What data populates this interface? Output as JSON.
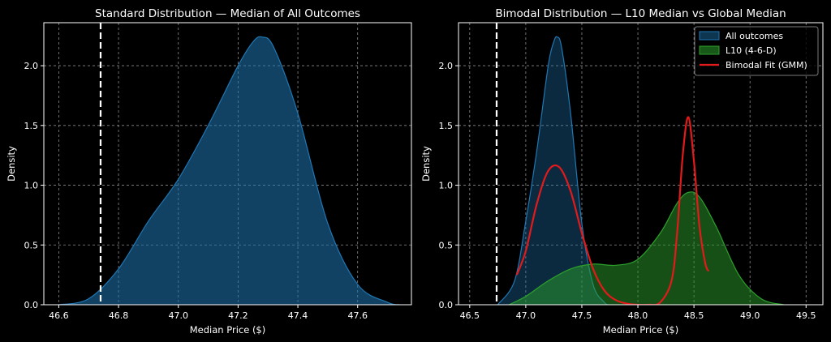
{
  "chart_data": [
    {
      "type": "area",
      "title": "Standard Distribution — Median of All Outcomes",
      "xlabel": "Median Price ($)",
      "ylabel": "Density",
      "xlim": [
        46.55,
        47.78
      ],
      "ylim": [
        0,
        2.36
      ],
      "xticks": [
        46.6,
        46.8,
        47.0,
        47.2,
        47.4,
        47.6
      ],
      "xtick_labels": [
        "46.6",
        "46.8",
        "47.0",
        "47.2",
        "47.4",
        "47.6"
      ],
      "yticks": [
        0.0,
        0.5,
        1.0,
        1.5,
        2.0
      ],
      "ytick_labels": [
        "0.0",
        "0.5",
        "1.0",
        "1.5",
        "2.0"
      ],
      "grid": true,
      "vline": {
        "x": 46.74,
        "style": "dashed",
        "color": "#ffffff"
      },
      "series": [
        {
          "name": "All outcomes",
          "color": "#1f77b4",
          "x": [
            46.6,
            46.7,
            46.8,
            46.9,
            47.0,
            47.1,
            47.2,
            47.25,
            47.28,
            47.32,
            47.4,
            47.5,
            47.6,
            47.7,
            47.74
          ],
          "y": [
            0.0,
            0.05,
            0.3,
            0.7,
            1.05,
            1.5,
            2.0,
            2.2,
            2.24,
            2.15,
            1.6,
            0.68,
            0.17,
            0.02,
            0.0
          ]
        }
      ]
    },
    {
      "type": "area",
      "title": "Bimodal Distribution — L10 Median vs Global Median",
      "xlabel": "Median Price ($)",
      "ylabel": "Density",
      "xlim": [
        46.4,
        49.65
      ],
      "ylim": [
        0,
        2.36
      ],
      "xticks": [
        46.5,
        47.0,
        47.5,
        48.0,
        48.5,
        49.0,
        49.5
      ],
      "xtick_labels": [
        "46.5",
        "47.0",
        "47.5",
        "48.0",
        "48.5",
        "49.0",
        "49.5"
      ],
      "yticks": [
        0.0,
        0.5,
        1.0,
        1.5,
        2.0
      ],
      "ytick_labels": [
        "0.0",
        "0.5",
        "1.0",
        "1.5",
        "2.0"
      ],
      "grid": true,
      "vline": {
        "x": 46.74,
        "style": "dashed",
        "color": "#ffffff"
      },
      "legend": {
        "position": "top-right",
        "entries": [
          "All outcomes",
          "L10 (4-6-D)",
          "Bimodal Fit (GMM)"
        ]
      },
      "series": [
        {
          "name": "All outcomes",
          "kind": "area",
          "color": "#1f77b4",
          "x": [
            46.75,
            46.9,
            47.0,
            47.1,
            47.2,
            47.25,
            47.28,
            47.32,
            47.4,
            47.5,
            47.6,
            47.7,
            47.74
          ],
          "y": [
            0.0,
            0.2,
            0.7,
            1.3,
            2.0,
            2.2,
            2.24,
            2.15,
            1.6,
            0.68,
            0.17,
            0.02,
            0.0
          ]
        },
        {
          "name": "L10 (4-6-D)",
          "kind": "area",
          "color": "#2ca02c",
          "x": [
            46.85,
            47.0,
            47.2,
            47.4,
            47.6,
            47.8,
            48.0,
            48.2,
            48.35,
            48.45,
            48.55,
            48.7,
            48.9,
            49.1,
            49.3
          ],
          "y": [
            0.0,
            0.07,
            0.2,
            0.3,
            0.34,
            0.33,
            0.38,
            0.6,
            0.85,
            0.94,
            0.9,
            0.65,
            0.25,
            0.05,
            0.0
          ]
        },
        {
          "name": "Bimodal Fit (GMM)",
          "kind": "line",
          "color": "#e31a1c",
          "x": [
            46.92,
            47.0,
            47.1,
            47.2,
            47.3,
            47.4,
            47.5,
            47.6,
            47.7,
            47.8,
            47.9,
            48.0,
            48.1,
            48.2,
            48.3,
            48.35,
            48.4,
            48.45,
            48.5,
            48.55,
            48.6,
            48.63
          ],
          "y": [
            0.25,
            0.45,
            0.85,
            1.12,
            1.15,
            0.95,
            0.6,
            0.3,
            0.12,
            0.04,
            0.01,
            0.0,
            0.0,
            0.02,
            0.2,
            0.6,
            1.25,
            1.57,
            1.2,
            0.65,
            0.35,
            0.28
          ]
        }
      ]
    }
  ]
}
